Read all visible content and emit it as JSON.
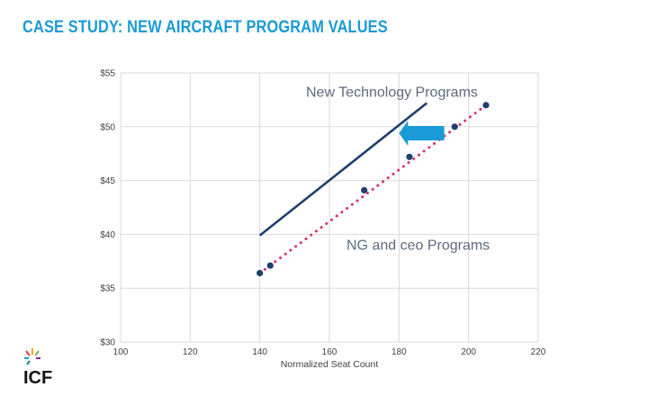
{
  "header": {
    "title": "CASE STUDY: NEW AIRCRAFT PROGRAM VALUES"
  },
  "logo": {
    "text": "ICF"
  },
  "colors": {
    "title": "#1a9ad6",
    "new_tech_line": "#1f3f6e",
    "ng_line": "#d6336c",
    "points": "#1f3f6e",
    "arrow": "#1a9ad6",
    "grid": "#d9d9d9"
  },
  "chart_data": {
    "type": "scatter",
    "xlabel": "Normalized Seat Count",
    "ylabel": "",
    "xlim": [
      100,
      220
    ],
    "ylim": [
      30,
      55
    ],
    "x_ticks": [
      100,
      120,
      140,
      160,
      180,
      200,
      220
    ],
    "x_tick_labels": [
      "100",
      "120",
      "140",
      "160",
      "180",
      "200",
      "220"
    ],
    "y_ticks": [
      30,
      35,
      40,
      45,
      50,
      55
    ],
    "y_tick_labels": [
      "$30",
      "$35",
      "$40",
      "$45",
      "$50",
      "$55"
    ],
    "grid": true,
    "series": [
      {
        "name": "NG and ceo Programs",
        "style": "dotted-line-with-points",
        "x": [
          140,
          143,
          170,
          183,
          196,
          205
        ],
        "y": [
          36.4,
          37.1,
          44.1,
          47.2,
          50.0,
          52.0
        ]
      },
      {
        "name": "New Technology Programs",
        "style": "solid-line",
        "x": [
          140,
          188
        ],
        "y": [
          39.9,
          52.2
        ]
      }
    ],
    "annotations": [
      {
        "text": "New Technology Programs",
        "x": 163,
        "y": 53.2
      },
      {
        "text": "NG and ceo Programs",
        "x": 163,
        "y": 39.0
      }
    ],
    "arrow": {
      "from": [
        193,
        49.4
      ],
      "to": [
        180,
        49.4
      ],
      "direction": "left"
    }
  }
}
